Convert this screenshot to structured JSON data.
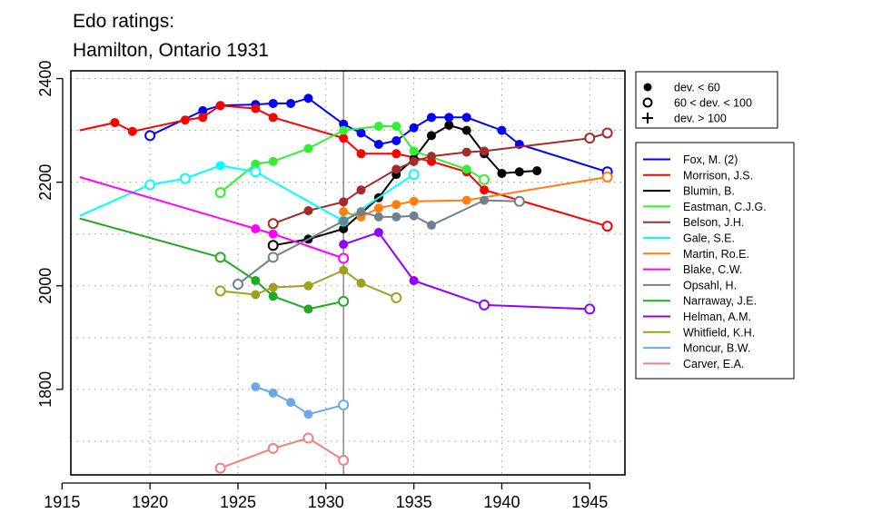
{
  "chart_data": {
    "type": "line",
    "title": [
      "Edo ratings:",
      "Hamilton, Ontario 1931"
    ],
    "xlabel": "",
    "ylabel": "",
    "xlim": [
      1915.5,
      1947
    ],
    "ylim": [
      1635,
      2415
    ],
    "xticks": [
      1915,
      1920,
      1925,
      1930,
      1935,
      1940,
      1945
    ],
    "yticks": [
      1800,
      2000,
      2200,
      2400
    ],
    "grid": true,
    "reference_line_x": 1931,
    "marker_legend": [
      {
        "marker": "filled",
        "label": "dev. < 60"
      },
      {
        "marker": "open",
        "label": "60 < dev. < 100"
      },
      {
        "marker": "plus",
        "label": "dev. > 100"
      }
    ],
    "series": [
      {
        "name": "Fox, M. (2)",
        "color": "#0000ff",
        "points": [
          {
            "x": 1920,
            "y": 2290,
            "m": "o"
          },
          {
            "x": 1923,
            "y": 2338,
            "m": "f"
          },
          {
            "x": 1924,
            "y": 2348,
            "m": "f"
          },
          {
            "x": 1926,
            "y": 2350,
            "m": "f"
          },
          {
            "x": 1927,
            "y": 2352,
            "m": "f"
          },
          {
            "x": 1928,
            "y": 2352,
            "m": "f"
          },
          {
            "x": 1929,
            "y": 2362,
            "m": "f"
          },
          {
            "x": 1931,
            "y": 2312,
            "m": "f"
          },
          {
            "x": 1932,
            "y": 2295,
            "m": "f"
          },
          {
            "x": 1933,
            "y": 2273,
            "m": "f"
          },
          {
            "x": 1934,
            "y": 2280,
            "m": "f"
          },
          {
            "x": 1935,
            "y": 2305,
            "m": "f"
          },
          {
            "x": 1936,
            "y": 2325,
            "m": "f"
          },
          {
            "x": 1937,
            "y": 2325,
            "m": "f"
          },
          {
            "x": 1938,
            "y": 2325,
            "m": "f"
          },
          {
            "x": 1940,
            "y": 2300,
            "m": "f"
          },
          {
            "x": 1941,
            "y": 2273,
            "m": "f"
          },
          {
            "x": 1946,
            "y": 2220,
            "m": "o"
          }
        ]
      },
      {
        "name": "Morrison, J.S.",
        "color": "#ff0000",
        "points": [
          {
            "x": 1916,
            "y": 2300,
            "m": "n"
          },
          {
            "x": 1918,
            "y": 2315,
            "m": "f"
          },
          {
            "x": 1919,
            "y": 2298,
            "m": "f"
          },
          {
            "x": 1922,
            "y": 2320,
            "m": "f"
          },
          {
            "x": 1923,
            "y": 2325,
            "m": "f"
          },
          {
            "x": 1924,
            "y": 2348,
            "m": "f"
          },
          {
            "x": 1926,
            "y": 2342,
            "m": "f"
          },
          {
            "x": 1927,
            "y": 2325,
            "m": "f"
          },
          {
            "x": 1931,
            "y": 2285,
            "m": "f"
          },
          {
            "x": 1932,
            "y": 2255,
            "m": "f"
          },
          {
            "x": 1934,
            "y": 2255,
            "m": "f"
          },
          {
            "x": 1936,
            "y": 2240,
            "m": "f"
          },
          {
            "x": 1938,
            "y": 2220,
            "m": "f"
          },
          {
            "x": 1939,
            "y": 2185,
            "m": "f"
          },
          {
            "x": 1946,
            "y": 2115,
            "m": "o"
          }
        ]
      },
      {
        "name": "Blumin, B.",
        "color": "#000000",
        "points": [
          {
            "x": 1927,
            "y": 2078,
            "m": "o"
          },
          {
            "x": 1929,
            "y": 2090,
            "m": "f"
          },
          {
            "x": 1931,
            "y": 2110,
            "m": "f"
          },
          {
            "x": 1933,
            "y": 2170,
            "m": "f"
          },
          {
            "x": 1934,
            "y": 2215,
            "m": "f"
          },
          {
            "x": 1935,
            "y": 2245,
            "m": "f"
          },
          {
            "x": 1936,
            "y": 2290,
            "m": "f"
          },
          {
            "x": 1937,
            "y": 2310,
            "m": "f"
          },
          {
            "x": 1938,
            "y": 2300,
            "m": "f"
          },
          {
            "x": 1939,
            "y": 2255,
            "m": "f"
          },
          {
            "x": 1940,
            "y": 2217,
            "m": "f"
          },
          {
            "x": 1941,
            "y": 2220,
            "m": "f"
          },
          {
            "x": 1942,
            "y": 2222,
            "m": "f"
          }
        ]
      },
      {
        "name": "Eastman, C.J.G.",
        "color": "#33ee33",
        "points": [
          {
            "x": 1924,
            "y": 2180,
            "m": "o"
          },
          {
            "x": 1926,
            "y": 2235,
            "m": "f"
          },
          {
            "x": 1927,
            "y": 2240,
            "m": "f"
          },
          {
            "x": 1929,
            "y": 2265,
            "m": "f"
          },
          {
            "x": 1931,
            "y": 2300,
            "m": "f"
          },
          {
            "x": 1933,
            "y": 2308,
            "m": "f"
          },
          {
            "x": 1934,
            "y": 2308,
            "m": "f"
          },
          {
            "x": 1935,
            "y": 2260,
            "m": "f"
          },
          {
            "x": 1938,
            "y": 2225,
            "m": "f"
          },
          {
            "x": 1939,
            "y": 2205,
            "m": "o"
          }
        ]
      },
      {
        "name": "Belson, J.H.",
        "color": "#a52a2a",
        "points": [
          {
            "x": 1927,
            "y": 2120,
            "m": "o"
          },
          {
            "x": 1929,
            "y": 2145,
            "m": "f"
          },
          {
            "x": 1931,
            "y": 2162,
            "m": "f"
          },
          {
            "x": 1932,
            "y": 2185,
            "m": "f"
          },
          {
            "x": 1934,
            "y": 2225,
            "m": "f"
          },
          {
            "x": 1935,
            "y": 2240,
            "m": "f"
          },
          {
            "x": 1936,
            "y": 2250,
            "m": "f"
          },
          {
            "x": 1938,
            "y": 2258,
            "m": "f"
          },
          {
            "x": 1939,
            "y": 2260,
            "m": "f"
          },
          {
            "x": 1945,
            "y": 2285,
            "m": "o"
          },
          {
            "x": 1946,
            "y": 2295,
            "m": "o"
          }
        ]
      },
      {
        "name": "Gale, S.E.",
        "color": "#00ffff",
        "points": [
          {
            "x": 1916,
            "y": 2135,
            "m": "n"
          },
          {
            "x": 1920,
            "y": 2195,
            "m": "o"
          },
          {
            "x": 1922,
            "y": 2207,
            "m": "o"
          },
          {
            "x": 1924,
            "y": 2232,
            "m": "f"
          },
          {
            "x": 1926,
            "y": 2220,
            "m": "o"
          },
          {
            "x": 1931,
            "y": 2125,
            "m": "o"
          },
          {
            "x": 1935,
            "y": 2215,
            "m": "o"
          }
        ]
      },
      {
        "name": "Martin, Ro.E.",
        "color": "#ff7f0e",
        "points": [
          {
            "x": 1931,
            "y": 2143,
            "m": "f"
          },
          {
            "x": 1932,
            "y": 2133,
            "m": "f"
          },
          {
            "x": 1933,
            "y": 2150,
            "m": "f"
          },
          {
            "x": 1934,
            "y": 2157,
            "m": "f"
          },
          {
            "x": 1935,
            "y": 2163,
            "m": "f"
          },
          {
            "x": 1938,
            "y": 2165,
            "m": "f"
          },
          {
            "x": 1946,
            "y": 2210,
            "m": "o"
          }
        ]
      },
      {
        "name": "Blake, C.W.",
        "color": "#ff00ff",
        "points": [
          {
            "x": 1916,
            "y": 2210,
            "m": "n"
          },
          {
            "x": 1926,
            "y": 2110,
            "m": "f"
          },
          {
            "x": 1927,
            "y": 2100,
            "m": "f"
          },
          {
            "x": 1931,
            "y": 2053,
            "m": "o"
          }
        ]
      },
      {
        "name": "Opsahl, H.",
        "color": "#708090",
        "points": [
          {
            "x": 1925,
            "y": 2003,
            "m": "o"
          },
          {
            "x": 1927,
            "y": 2055,
            "m": "o"
          },
          {
            "x": 1931,
            "y": 2125,
            "m": "f"
          },
          {
            "x": 1932,
            "y": 2143,
            "m": "f"
          },
          {
            "x": 1933,
            "y": 2133,
            "m": "f"
          },
          {
            "x": 1934,
            "y": 2133,
            "m": "f"
          },
          {
            "x": 1935,
            "y": 2135,
            "m": "f"
          },
          {
            "x": 1936,
            "y": 2117,
            "m": "f"
          },
          {
            "x": 1939,
            "y": 2165,
            "m": "f"
          },
          {
            "x": 1941,
            "y": 2163,
            "m": "o"
          }
        ]
      },
      {
        "name": "Narraway, J.E.",
        "color": "#22aa22",
        "points": [
          {
            "x": 1916,
            "y": 2130,
            "m": "n"
          },
          {
            "x": 1924,
            "y": 2055,
            "m": "o"
          },
          {
            "x": 1926,
            "y": 2010,
            "m": "f"
          },
          {
            "x": 1927,
            "y": 1980,
            "m": "f"
          },
          {
            "x": 1929,
            "y": 1955,
            "m": "f"
          },
          {
            "x": 1931,
            "y": 1970,
            "m": "o"
          }
        ]
      },
      {
        "name": "Helman, A.M.",
        "color": "#9400ff",
        "points": [
          {
            "x": 1931,
            "y": 2080,
            "m": "f"
          },
          {
            "x": 1933,
            "y": 2103,
            "m": "f"
          },
          {
            "x": 1935,
            "y": 2010,
            "m": "f"
          },
          {
            "x": 1939,
            "y": 1963,
            "m": "o"
          },
          {
            "x": 1945,
            "y": 1955,
            "m": "o"
          }
        ]
      },
      {
        "name": "Whitfield, K.H.",
        "color": "#a0a020",
        "points": [
          {
            "x": 1924,
            "y": 1990,
            "m": "o"
          },
          {
            "x": 1926,
            "y": 1983,
            "m": "f"
          },
          {
            "x": 1927,
            "y": 1997,
            "m": "f"
          },
          {
            "x": 1929,
            "y": 2000,
            "m": "f"
          },
          {
            "x": 1931,
            "y": 2030,
            "m": "f"
          },
          {
            "x": 1932,
            "y": 2005,
            "m": "f"
          },
          {
            "x": 1934,
            "y": 1977,
            "m": "o"
          }
        ]
      },
      {
        "name": "Moncur, B.W.",
        "color": "#6aa8e6",
        "points": [
          {
            "x": 1926,
            "y": 1805,
            "m": "f"
          },
          {
            "x": 1927,
            "y": 1793,
            "m": "f"
          },
          {
            "x": 1928,
            "y": 1775,
            "m": "f"
          },
          {
            "x": 1929,
            "y": 1752,
            "m": "f"
          },
          {
            "x": 1931,
            "y": 1770,
            "m": "o"
          }
        ]
      },
      {
        "name": "Carver, E.A.",
        "color": "#f08080",
        "points": [
          {
            "x": 1924,
            "y": 1648,
            "m": "o"
          },
          {
            "x": 1927,
            "y": 1686,
            "m": "o"
          },
          {
            "x": 1929,
            "y": 1706,
            "m": "o"
          },
          {
            "x": 1931,
            "y": 1663,
            "m": "o"
          }
        ]
      }
    ]
  }
}
